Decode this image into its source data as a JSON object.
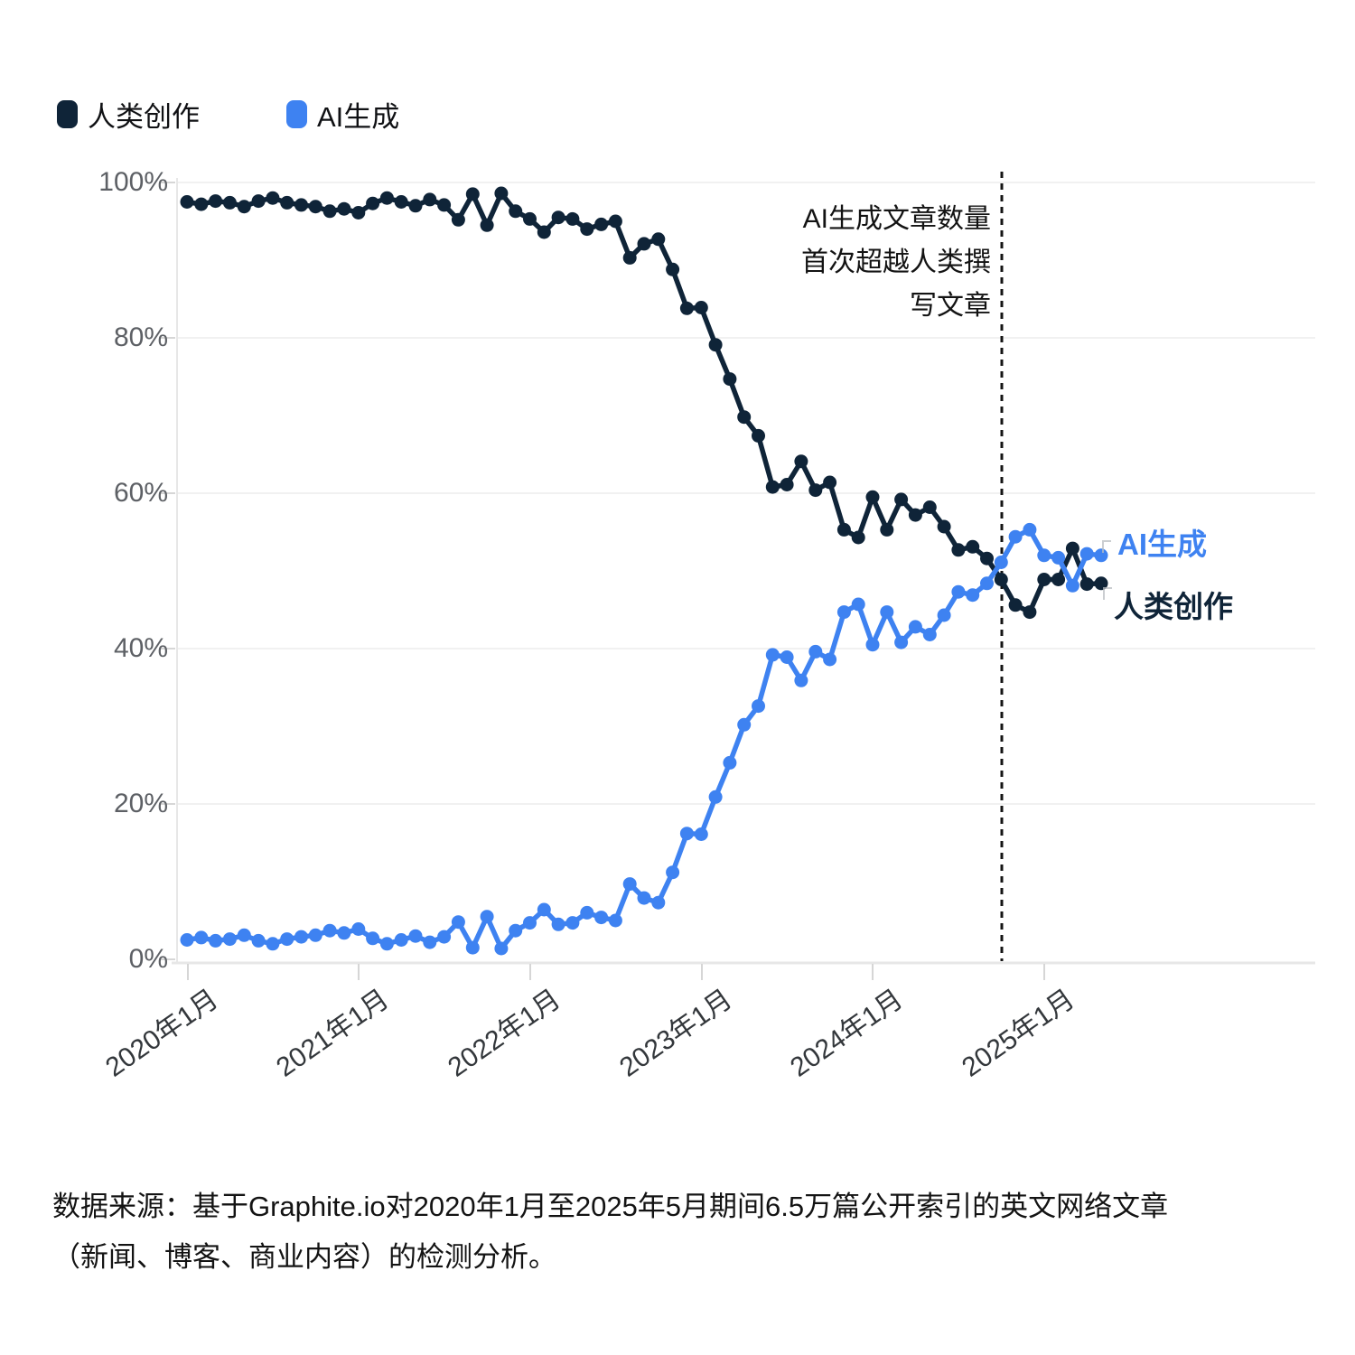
{
  "legend": {
    "human": {
      "label": "人类创作",
      "color": "#0f2438"
    },
    "ai": {
      "label": "AI生成",
      "color": "#3e82f1"
    }
  },
  "y_axis": {
    "ticks": [
      "100%",
      "80%",
      "60%",
      "40%",
      "20%",
      "0%"
    ]
  },
  "x_axis": {
    "ticks": [
      "2020年1月",
      "2021年1月",
      "2022年1月",
      "2023年1月",
      "2024年1月",
      "2025年1月"
    ]
  },
  "annotation": {
    "line1": "AI生成文章数量",
    "line2": "首次超越人类撰",
    "line3": "写文章"
  },
  "series_end_labels": {
    "ai": "AI生成",
    "human": "人类创作"
  },
  "source": {
    "line1": "数据来源：基于Graphite.io对2020年1月至2025年5月期间6.5万篇公开索引的英文网络文章",
    "line2": "（新闻、博客、商业内容）的检测分析。"
  },
  "chart_data": {
    "type": "line",
    "title": "",
    "xlabel": "",
    "ylabel": "",
    "ylim": [
      0,
      100
    ],
    "y_tick_values": [
      0,
      20,
      40,
      60,
      80,
      100
    ],
    "grid": "horizontal-faint",
    "legend_position": "top-left",
    "marker": "circle",
    "x": [
      "2020-01",
      "2020-02",
      "2020-03",
      "2020-04",
      "2020-05",
      "2020-06",
      "2020-07",
      "2020-08",
      "2020-09",
      "2020-10",
      "2020-11",
      "2020-12",
      "2021-01",
      "2021-02",
      "2021-03",
      "2021-04",
      "2021-05",
      "2021-06",
      "2021-07",
      "2021-08",
      "2021-09",
      "2021-10",
      "2021-11",
      "2021-12",
      "2022-01",
      "2022-02",
      "2022-03",
      "2022-04",
      "2022-05",
      "2022-06",
      "2022-07",
      "2022-08",
      "2022-09",
      "2022-10",
      "2022-11",
      "2022-12",
      "2023-01",
      "2023-02",
      "2023-03",
      "2023-04",
      "2023-05",
      "2023-06",
      "2023-07",
      "2023-08",
      "2023-09",
      "2023-10",
      "2023-11",
      "2023-12",
      "2024-01",
      "2024-02",
      "2024-03",
      "2024-04",
      "2024-05",
      "2024-06",
      "2024-07",
      "2024-08",
      "2024-09",
      "2024-10",
      "2024-11",
      "2024-12",
      "2025-01",
      "2025-02",
      "2025-03",
      "2025-04",
      "2025-05"
    ],
    "series": [
      {
        "name": "人类创作",
        "color": "#0f2438",
        "values": [
          97.5,
          97.2,
          97.6,
          97.4,
          96.9,
          97.6,
          98.0,
          97.4,
          97.1,
          96.9,
          96.3,
          96.6,
          96.1,
          97.3,
          98.0,
          97.5,
          97.0,
          97.8,
          97.1,
          95.2,
          98.5,
          94.5,
          98.6,
          96.3,
          95.3,
          93.6,
          95.5,
          95.3,
          94.0,
          94.6,
          95.0,
          90.3,
          92.1,
          92.7,
          88.8,
          83.8,
          83.9,
          79.1,
          74.7,
          69.8,
          67.4,
          60.8,
          61.1,
          64.1,
          60.4,
          61.4,
          55.3,
          54.3,
          59.5,
          55.3,
          59.2,
          57.2,
          58.2,
          55.7,
          52.7,
          53.1,
          51.6,
          48.9,
          45.6,
          44.7,
          48.9,
          48.9,
          52.9,
          48.3,
          48.4
        ]
      },
      {
        "name": "AI生成",
        "color": "#3e82f1",
        "values": [
          2.5,
          2.8,
          2.4,
          2.6,
          3.1,
          2.4,
          2.0,
          2.6,
          2.9,
          3.1,
          3.7,
          3.4,
          3.9,
          2.7,
          2.0,
          2.5,
          3.0,
          2.2,
          2.9,
          4.8,
          1.5,
          5.5,
          1.4,
          3.7,
          4.7,
          6.4,
          4.5,
          4.7,
          6.0,
          5.4,
          5.0,
          9.7,
          7.9,
          7.3,
          11.2,
          16.2,
          16.1,
          20.9,
          25.3,
          30.2,
          32.6,
          39.2,
          38.9,
          35.9,
          39.6,
          38.6,
          44.7,
          45.7,
          40.5,
          44.7,
          40.8,
          42.8,
          41.8,
          44.3,
          47.3,
          46.9,
          48.4,
          51.1,
          54.4,
          55.3,
          52.0,
          51.7,
          48.1,
          52.2,
          52.0
        ]
      }
    ],
    "annotation": {
      "text": "AI生成文章数量首次超越人类撰写文章",
      "x": "2024-10",
      "style": "dashed-vertical-line"
    }
  }
}
